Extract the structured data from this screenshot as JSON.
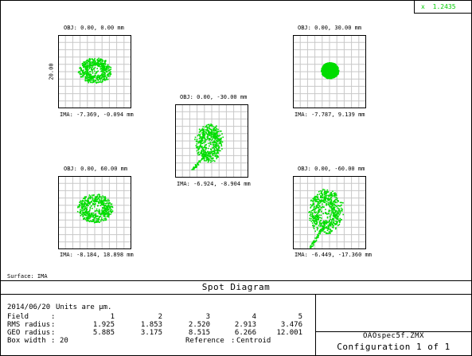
{
  "window": {
    "coord_readout": "x 1.2435"
  },
  "spots": [
    {
      "obj": "OBJ: 0.00, 0.00 mm",
      "ima": "IMA: -7.369, -0.094 mm",
      "scale_label": "20.00",
      "shape": "blob-a",
      "color": "#00dd00"
    },
    {
      "obj": "OBJ: 0.00, 30.00 mm",
      "ima": "IMA: -7.787, 9.139 mm",
      "shape": "solid",
      "color": "#00dd00"
    },
    {
      "obj": "OBJ: 0.00, -30.00 mm",
      "ima": "IMA: -6.924, -8.904 mm",
      "shape": "blob-c",
      "color": "#00dd00"
    },
    {
      "obj": "OBJ: 0.00, 60.00 mm",
      "ima": "IMA: -8.184, 18.898 mm",
      "shape": "blob-d",
      "color": "#00dd00"
    },
    {
      "obj": "OBJ: 0.00, -60.00 mm",
      "ima": "IMA: -6.449, -17.360 mm",
      "shape": "blob-e",
      "color": "#00dd00"
    }
  ],
  "surface_label": "Surface: IMA",
  "title": "Spot Diagram",
  "info": {
    "date": "2014/06/20",
    "units": "Units are µm.",
    "field_label": "Field",
    "field_values": [
      "1",
      "2",
      "3",
      "4",
      "5"
    ],
    "rms_label": "RMS radius",
    "rms_values": [
      "1.925",
      "1.853",
      "2.520",
      "2.913",
      "3.476"
    ],
    "geo_label": "GEO radius",
    "geo_values": [
      "5.885",
      "3.175",
      "8.515",
      "6.266",
      "12.001"
    ],
    "box_label": "Box width",
    "box_value": "20",
    "reference_label": "Reference",
    "reference_value": "Centroid",
    "filename": "OAOspec5f.ZMX",
    "configuration": "Configuration 1 of 1"
  }
}
